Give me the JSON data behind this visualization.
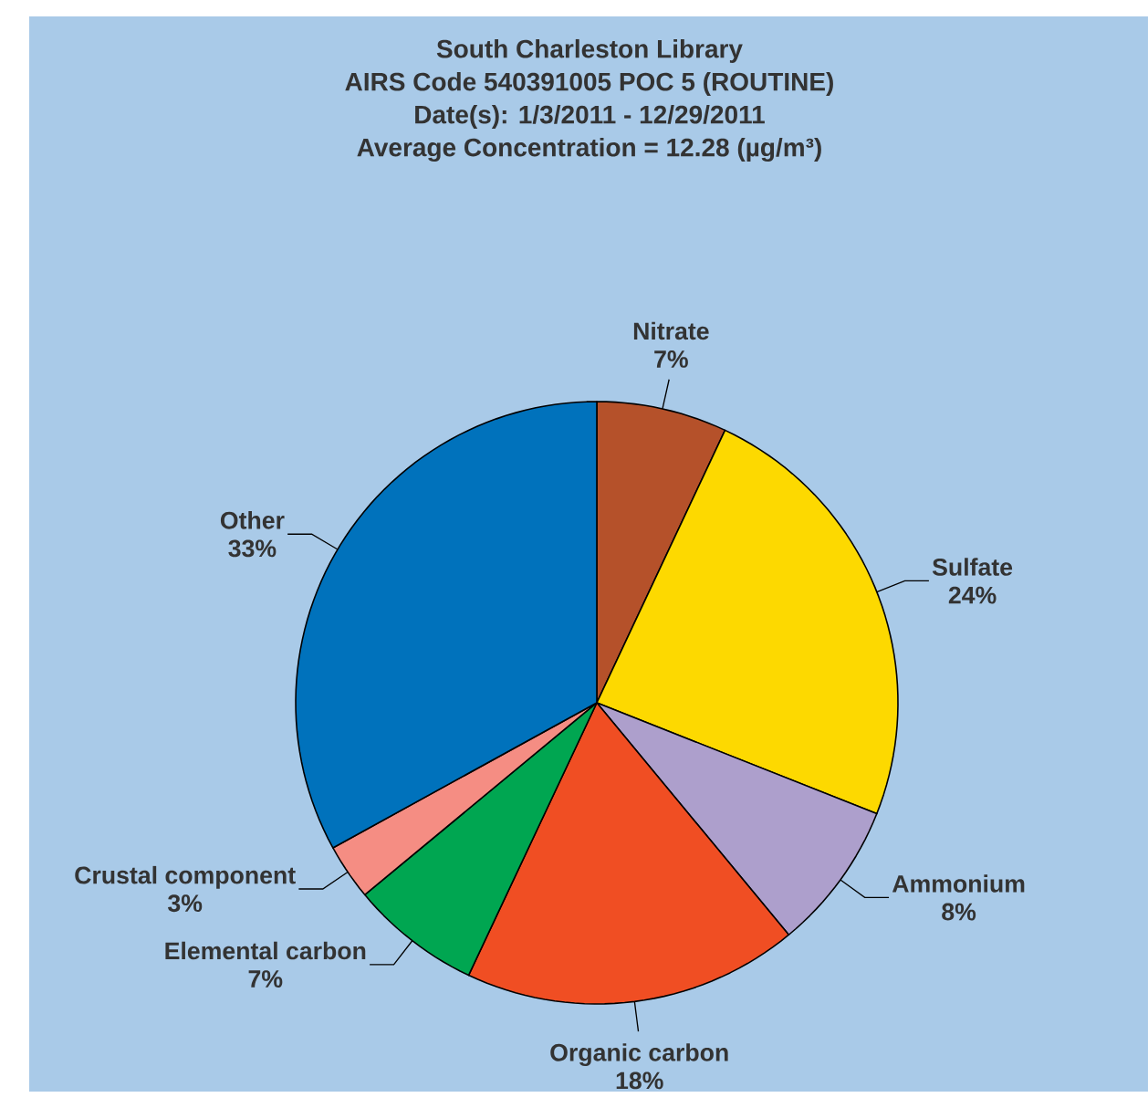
{
  "chart_data": {
    "type": "pie",
    "title": "South Charleston Library",
    "subtitle": "AIRS Code 540391005 POC 5 (ROUTINE)",
    "annotations": [
      "Date(s):  1/3/2011 - 12/29/2011",
      "Average Concentration = 12.28 (µg/m³)"
    ],
    "categories": [
      "Nitrate",
      "Sulfate",
      "Ammonium",
      "Organic carbon",
      "Elemental carbon",
      "Crustal component",
      "Other"
    ],
    "values": [
      7,
      24,
      8,
      18,
      7,
      3,
      33
    ],
    "value_labels": [
      "7%",
      "24%",
      "8%",
      "18%",
      "7%",
      "3%",
      "33%"
    ],
    "colors": [
      "#b5512a",
      "#fdd900",
      "#ad9fcc",
      "#f04e23",
      "#00a651",
      "#f58d83",
      "#0072bc"
    ]
  }
}
